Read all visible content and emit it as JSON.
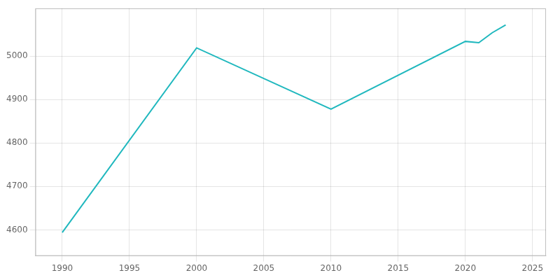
{
  "chart_data": {
    "type": "line",
    "x": [
      1990,
      2000,
      2010,
      2020,
      2021,
      2022,
      2023
    ],
    "values": [
      4594,
      5019,
      4878,
      5034,
      5031,
      5054,
      5072
    ],
    "color": "#20b8be",
    "xlim": [
      1988,
      2026
    ],
    "xticks": [
      1990,
      1995,
      2000,
      2005,
      2010,
      2015,
      2020,
      2025
    ],
    "ylim": [
      4540,
      5110
    ],
    "yticks": [
      4600,
      4700,
      4800,
      4900,
      5000
    ],
    "grid": true
  }
}
